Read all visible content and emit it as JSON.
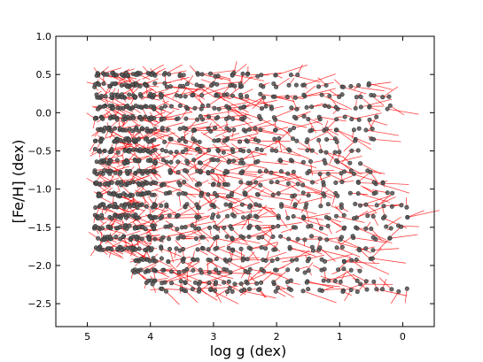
{
  "chart_data": {
    "type": "scatter",
    "xlabel": "log g (dex)",
    "ylabel": "[Fe/H] (dex)",
    "xlim": [
      5.5,
      -0.5
    ],
    "ylim": [
      -2.8,
      1.0
    ],
    "x_reversed": true,
    "grid": false,
    "legend": "none",
    "xticks": [
      "5",
      "4",
      "3",
      "2",
      "1",
      "0"
    ],
    "xtick_values": [
      5,
      4,
      3,
      2,
      1,
      0
    ],
    "yticks": [
      "1.0",
      "0.5",
      "0.0",
      "−0.5",
      "−1.0",
      "−1.5",
      "−2.0",
      "−2.5"
    ],
    "ytick_values": [
      1.0,
      0.5,
      0.0,
      -0.5,
      -1.0,
      -1.5,
      -2.0,
      -2.5
    ],
    "marker_color": "#555555",
    "marker_edge_color": "#333333",
    "line_color": "#ff0000",
    "grid_logg": [
      4.8,
      4.6,
      4.4,
      4.2,
      4.0,
      3.75,
      3.5,
      3.25,
      3.0,
      2.75,
      2.5,
      2.25,
      2.0,
      1.75,
      1.5,
      1.25,
      1.0,
      0.75,
      0.5,
      0.25,
      0.0
    ],
    "grid_feh": [
      0.5,
      0.36,
      0.22,
      0.07,
      -0.07,
      -0.22,
      -0.36,
      -0.5,
      -0.64,
      -0.78,
      -0.93,
      -1.07,
      -1.22,
      -1.36,
      -1.5,
      -1.64,
      -1.78,
      -1.93,
      -2.07,
      -2.22,
      -2.32
    ],
    "grid_max_logg_by_feh": [
      4.8,
      4.8,
      4.8,
      4.8,
      4.8,
      4.8,
      4.8,
      4.8,
      4.8,
      4.8,
      4.8,
      4.8,
      4.8,
      4.8,
      4.8,
      4.8,
      4.8,
      4.3,
      4.3,
      4.0,
      3.8
    ],
    "grid_min_logg_by_feh": [
      1.75,
      0.5,
      0.25,
      0.25,
      0.5,
      0.5,
      0.5,
      0.75,
      0.75,
      0.5,
      0.25,
      0.25,
      0.0,
      0.0,
      0.0,
      0.25,
      0.5,
      0.5,
      0.75,
      0.5,
      0.0
    ]
  }
}
